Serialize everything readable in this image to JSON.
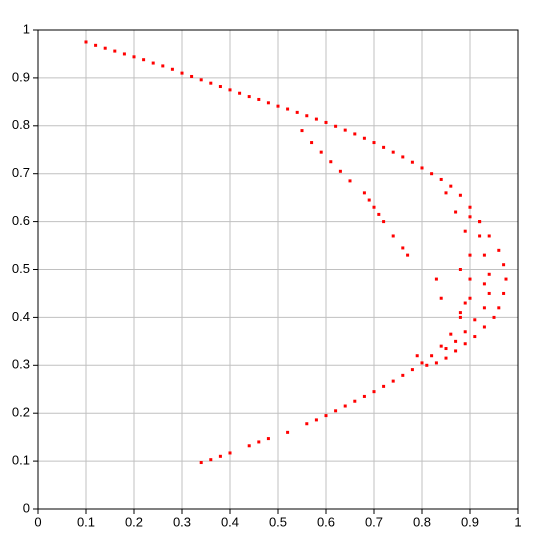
{
  "chart_data": {
    "type": "scatter",
    "x": [
      0.1,
      0.12,
      0.14,
      0.16,
      0.18,
      0.2,
      0.22,
      0.24,
      0.26,
      0.28,
      0.3,
      0.32,
      0.34,
      0.36,
      0.38,
      0.4,
      0.42,
      0.44,
      0.46,
      0.48,
      0.5,
      0.52,
      0.54,
      0.56,
      0.58,
      0.6,
      0.62,
      0.64,
      0.66,
      0.68,
      0.7,
      0.72,
      0.74,
      0.76,
      0.78,
      0.8,
      0.82,
      0.84,
      0.86,
      0.88,
      0.9,
      0.92,
      0.94,
      0.96,
      0.97,
      0.975,
      0.97,
      0.96,
      0.95,
      0.93,
      0.91,
      0.89,
      0.87,
      0.85,
      0.83,
      0.81,
      0.79,
      0.34,
      0.36,
      0.38,
      0.4,
      0.44,
      0.46,
      0.48,
      0.52,
      0.56,
      0.58,
      0.6,
      0.62,
      0.64,
      0.66,
      0.68,
      0.7,
      0.72,
      0.74,
      0.76,
      0.78,
      0.8,
      0.82,
      0.84,
      0.86,
      0.88,
      0.89,
      0.9,
      0.9,
      0.89,
      0.87,
      0.85,
      0.55,
      0.57,
      0.59,
      0.61,
      0.63,
      0.65,
      0.68,
      0.69,
      0.7,
      0.71,
      0.72,
      0.74,
      0.76,
      0.77,
      0.9,
      0.92,
      0.93,
      0.94,
      0.94,
      0.93,
      0.91,
      0.89,
      0.87,
      0.85,
      0.92,
      0.93,
      0.9,
      0.88,
      0.84,
      0.83,
      0.88
    ],
    "values": [
      0.975,
      0.968,
      0.962,
      0.956,
      0.95,
      0.944,
      0.938,
      0.931,
      0.925,
      0.918,
      0.91,
      0.903,
      0.896,
      0.889,
      0.882,
      0.875,
      0.868,
      0.861,
      0.855,
      0.848,
      0.841,
      0.835,
      0.828,
      0.821,
      0.814,
      0.807,
      0.799,
      0.791,
      0.783,
      0.774,
      0.765,
      0.755,
      0.745,
      0.735,
      0.724,
      0.712,
      0.7,
      0.688,
      0.674,
      0.655,
      0.63,
      0.6,
      0.57,
      0.54,
      0.51,
      0.48,
      0.45,
      0.42,
      0.4,
      0.38,
      0.36,
      0.345,
      0.33,
      0.315,
      0.305,
      0.3,
      0.32,
      0.097,
      0.103,
      0.11,
      0.117,
      0.132,
      0.14,
      0.147,
      0.16,
      0.178,
      0.186,
      0.195,
      0.205,
      0.215,
      0.225,
      0.235,
      0.245,
      0.256,
      0.267,
      0.279,
      0.291,
      0.305,
      0.32,
      0.34,
      0.365,
      0.4,
      0.43,
      0.48,
      0.53,
      0.58,
      0.62,
      0.66,
      0.79,
      0.765,
      0.745,
      0.725,
      0.705,
      0.685,
      0.66,
      0.645,
      0.63,
      0.615,
      0.6,
      0.57,
      0.545,
      0.53,
      0.61,
      0.57,
      0.53,
      0.49,
      0.45,
      0.42,
      0.395,
      0.37,
      0.35,
      0.335,
      0.6,
      0.47,
      0.44,
      0.41,
      0.44,
      0.48,
      0.5
    ],
    "color": "#ff0000",
    "xlim": [
      0,
      1
    ],
    "ylim": [
      0,
      1
    ],
    "xticks": [
      0,
      0.1,
      0.2,
      0.3,
      0.4,
      0.5,
      0.6,
      0.7,
      0.8,
      0.9,
      1
    ],
    "yticks": [
      0,
      0.1,
      0.2,
      0.3,
      0.4,
      0.5,
      0.6,
      0.7,
      0.8,
      0.9,
      1
    ],
    "grid": true
  }
}
